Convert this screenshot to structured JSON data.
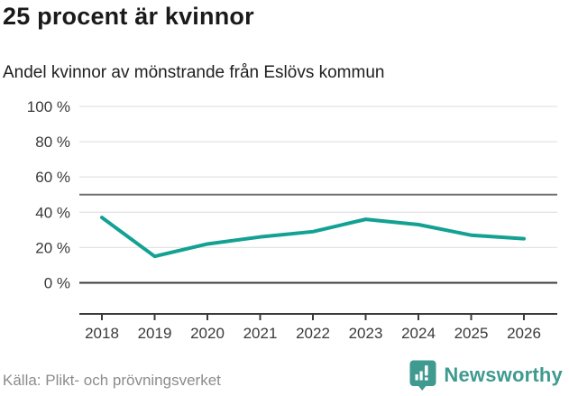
{
  "header": {
    "title": "25 procent är kvinnor",
    "subtitle": "Andel kvinnor av mönstrande från Eslövs kommun"
  },
  "chart_data": {
    "type": "line",
    "title": "25 procent är kvinnor",
    "subtitle": "Andel kvinnor av mönstrande från Eslövs kommun",
    "x": [
      2018,
      2019,
      2020,
      2021,
      2022,
      2023,
      2024,
      2025,
      2026
    ],
    "series": [
      {
        "name": "Andel kvinnor av mönstrande",
        "values": [
          37,
          15,
          22,
          26,
          29,
          36,
          33,
          27,
          25
        ]
      }
    ],
    "unit": "%",
    "ylim": [
      0,
      100
    ],
    "yticks": [
      0,
      20,
      40,
      60,
      80,
      100
    ],
    "ytick_format": "{v} %",
    "reference_line": 50,
    "grid": "horizontal",
    "legend": "none",
    "line_color": "#12a192"
  },
  "footer": {
    "source": "Källa: Plikt- och prövningsverket",
    "brand": "Newsworthy"
  },
  "colors": {
    "accent_teal": "#12a192",
    "brand_teal": "#3f9a90",
    "title_text": "#1a1a1a",
    "axis_text": "#3a3a3a",
    "gridline": "#e4e4e4",
    "axis_line": "#3b3b3b",
    "reference_line": "#6f6f6f",
    "source_text": "#8c8c8c"
  }
}
